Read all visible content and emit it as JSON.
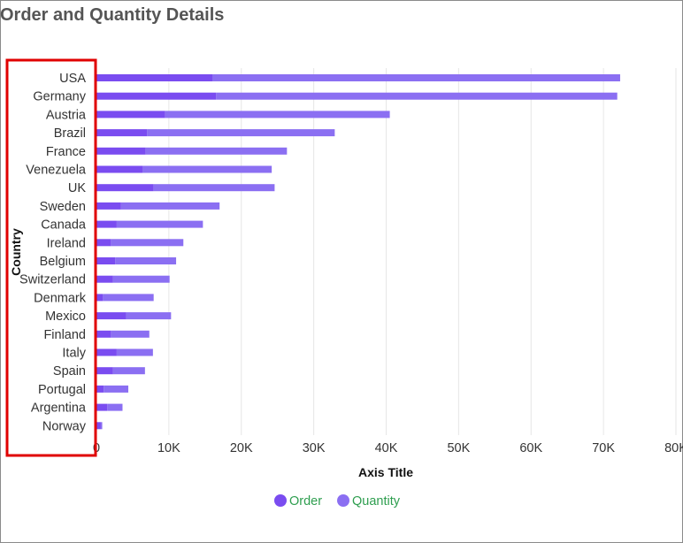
{
  "chart_data": {
    "type": "bar",
    "orientation": "horizontal",
    "stacked": true,
    "title": "Order and Quantity Details",
    "xlabel": "Axis Title",
    "ylabel": "Country",
    "xlim": [
      0,
      80000
    ],
    "x_ticks": [
      "0",
      "10K",
      "20K",
      "30K",
      "40K",
      "50K",
      "60K",
      "70K",
      "80K"
    ],
    "x_tick_values": [
      0,
      10000,
      20000,
      30000,
      40000,
      50000,
      60000,
      70000,
      80000
    ],
    "grid": true,
    "legend_position": "bottom-center",
    "categories": [
      "USA",
      "Germany",
      "Austria",
      "Brazil",
      "France",
      "Venezuela",
      "UK",
      "Sweden",
      "Canada",
      "Ireland",
      "Belgium",
      "Switzerland",
      "Denmark",
      "Mexico",
      "Finland",
      "Italy",
      "Spain",
      "Portugal",
      "Argentina",
      "Norway"
    ],
    "series": [
      {
        "name": "Order",
        "color": "#7a4cf0",
        "values": [
          16000,
          16500,
          9500,
          7000,
          6800,
          6400,
          7900,
          3400,
          2800,
          2000,
          2600,
          2300,
          900,
          4100,
          2000,
          2800,
          2300,
          1000,
          1500,
          600
        ]
      },
      {
        "name": "Quantity",
        "color": "#8b6ff2",
        "values": [
          56300,
          55400,
          31000,
          25900,
          19500,
          17800,
          16700,
          13600,
          11900,
          10000,
          8400,
          7800,
          7000,
          6200,
          5300,
          5000,
          4400,
          3400,
          2100,
          200
        ]
      }
    ]
  }
}
